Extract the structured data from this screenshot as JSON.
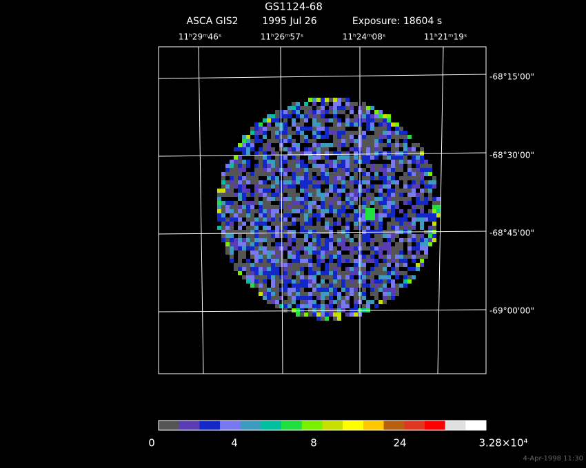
{
  "header": {
    "title": "GS1124-68",
    "instrument": "ASCA GIS2",
    "date": "1995 Jul 26",
    "exposure": "Exposure: 18604 s"
  },
  "ra_labels": [
    "11ʰ29ᵐ46ˢ",
    "11ʰ26ᵐ57ˢ",
    "11ʰ24ᵐ08ˢ",
    "11ʰ21ᵐ19ˢ"
  ],
  "dec_labels": [
    "-68°15'00\"",
    "-68°30'00\"",
    "-68°45'00\"",
    "-69°00'00\""
  ],
  "colorbar": {
    "colors": [
      "#555555",
      "#5a3cb4",
      "#1428c8",
      "#7878f0",
      "#3c9cc0",
      "#00c0a0",
      "#20e040",
      "#78f000",
      "#c8e000",
      "#ffff00",
      "#ffc800",
      "#b86010",
      "#e03820",
      "#ff0000",
      "#e0e0e0",
      "#ffffff"
    ],
    "labels": [
      "0",
      "4",
      "8",
      "24",
      "3.28×10⁴"
    ]
  },
  "footer": "4-Apr-1998 11:30"
}
